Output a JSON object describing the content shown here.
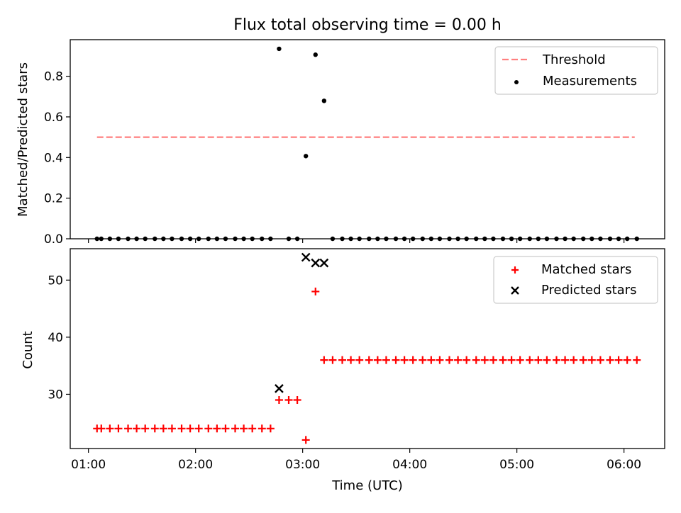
{
  "chart_data": [
    {
      "type": "scatter",
      "panel": "top",
      "title": "Flux total observing time = 0.00 h",
      "xlabel": "",
      "ylabel": "Matched/Predicted stars",
      "x_unit": "hours UTC",
      "xlim": [
        0.83,
        6.38
      ],
      "ylim": [
        0,
        0.98
      ],
      "yticks": [
        0.0,
        0.2,
        0.4,
        0.6,
        0.8
      ],
      "ytick_labels": [
        "0.0",
        "0.2",
        "0.4",
        "0.6",
        "0.8"
      ],
      "legend_position": "top-right",
      "threshold": {
        "name": "Threshold",
        "value": 0.5,
        "x_start": 1.08,
        "x_end": 6.1,
        "color": "#ff7f7f",
        "style": "dashed"
      },
      "measurements": {
        "name": "Measurements",
        "color": "#000000",
        "points": [
          {
            "x": 1.08,
            "y": 0.0
          },
          {
            "x": 1.12,
            "y": 0.0
          },
          {
            "x": 1.2,
            "y": 0.0
          },
          {
            "x": 1.28,
            "y": 0.0
          },
          {
            "x": 1.37,
            "y": 0.0
          },
          {
            "x": 1.45,
            "y": 0.0
          },
          {
            "x": 1.53,
            "y": 0.0
          },
          {
            "x": 1.62,
            "y": 0.0
          },
          {
            "x": 1.7,
            "y": 0.0
          },
          {
            "x": 1.78,
            "y": 0.0
          },
          {
            "x": 1.87,
            "y": 0.0
          },
          {
            "x": 1.95,
            "y": 0.0
          },
          {
            "x": 2.03,
            "y": 0.0
          },
          {
            "x": 2.12,
            "y": 0.0
          },
          {
            "x": 2.2,
            "y": 0.0
          },
          {
            "x": 2.28,
            "y": 0.0
          },
          {
            "x": 2.37,
            "y": 0.0
          },
          {
            "x": 2.45,
            "y": 0.0
          },
          {
            "x": 2.53,
            "y": 0.0
          },
          {
            "x": 2.62,
            "y": 0.0
          },
          {
            "x": 2.7,
            "y": 0.0
          },
          {
            "x": 2.78,
            "y": 0.935
          },
          {
            "x": 2.87,
            "y": 0.0
          },
          {
            "x": 2.95,
            "y": 0.0
          },
          {
            "x": 3.03,
            "y": 0.407
          },
          {
            "x": 3.12,
            "y": 0.906
          },
          {
            "x": 3.2,
            "y": 0.679
          },
          {
            "x": 3.28,
            "y": 0.0
          },
          {
            "x": 3.37,
            "y": 0.0
          },
          {
            "x": 3.45,
            "y": 0.0
          },
          {
            "x": 3.53,
            "y": 0.0
          },
          {
            "x": 3.62,
            "y": 0.0
          },
          {
            "x": 3.7,
            "y": 0.0
          },
          {
            "x": 3.78,
            "y": 0.0
          },
          {
            "x": 3.87,
            "y": 0.0
          },
          {
            "x": 3.95,
            "y": 0.0
          },
          {
            "x": 4.03,
            "y": 0.0
          },
          {
            "x": 4.12,
            "y": 0.0
          },
          {
            "x": 4.2,
            "y": 0.0
          },
          {
            "x": 4.28,
            "y": 0.0
          },
          {
            "x": 4.37,
            "y": 0.0
          },
          {
            "x": 4.45,
            "y": 0.0
          },
          {
            "x": 4.53,
            "y": 0.0
          },
          {
            "x": 4.62,
            "y": 0.0
          },
          {
            "x": 4.7,
            "y": 0.0
          },
          {
            "x": 4.78,
            "y": 0.0
          },
          {
            "x": 4.87,
            "y": 0.0
          },
          {
            "x": 4.95,
            "y": 0.0
          },
          {
            "x": 5.03,
            "y": 0.0
          },
          {
            "x": 5.12,
            "y": 0.0
          },
          {
            "x": 5.2,
            "y": 0.0
          },
          {
            "x": 5.28,
            "y": 0.0
          },
          {
            "x": 5.37,
            "y": 0.0
          },
          {
            "x": 5.45,
            "y": 0.0
          },
          {
            "x": 5.53,
            "y": 0.0
          },
          {
            "x": 5.62,
            "y": 0.0
          },
          {
            "x": 5.7,
            "y": 0.0
          },
          {
            "x": 5.78,
            "y": 0.0
          },
          {
            "x": 5.87,
            "y": 0.0
          },
          {
            "x": 5.95,
            "y": 0.0
          },
          {
            "x": 6.03,
            "y": 0.0
          },
          {
            "x": 6.12,
            "y": 0.0
          }
        ]
      },
      "legend": [
        "Threshold",
        "Measurements"
      ]
    },
    {
      "type": "scatter",
      "panel": "bottom",
      "xlabel": "Time (UTC)",
      "ylabel": "Count",
      "x_unit": "hours UTC",
      "xlim": [
        0.83,
        6.38
      ],
      "ylim": [
        20.5,
        55.5
      ],
      "xticks": [
        1,
        2,
        3,
        4,
        5,
        6
      ],
      "xtick_labels": [
        "01:00",
        "02:00",
        "03:00",
        "04:00",
        "05:00",
        "06:00"
      ],
      "yticks": [
        30,
        40,
        50
      ],
      "ytick_labels": [
        "30",
        "40",
        "50"
      ],
      "legend_position": "top-right",
      "matched": {
        "name": "Matched stars",
        "marker": "plus",
        "color": "#ff0000",
        "points": [
          {
            "x": 1.08,
            "y": 24
          },
          {
            "x": 1.12,
            "y": 24
          },
          {
            "x": 1.2,
            "y": 24
          },
          {
            "x": 1.28,
            "y": 24
          },
          {
            "x": 1.37,
            "y": 24
          },
          {
            "x": 1.45,
            "y": 24
          },
          {
            "x": 1.53,
            "y": 24
          },
          {
            "x": 1.62,
            "y": 24
          },
          {
            "x": 1.7,
            "y": 24
          },
          {
            "x": 1.78,
            "y": 24
          },
          {
            "x": 1.87,
            "y": 24
          },
          {
            "x": 1.95,
            "y": 24
          },
          {
            "x": 2.03,
            "y": 24
          },
          {
            "x": 2.12,
            "y": 24
          },
          {
            "x": 2.2,
            "y": 24
          },
          {
            "x": 2.28,
            "y": 24
          },
          {
            "x": 2.37,
            "y": 24
          },
          {
            "x": 2.45,
            "y": 24
          },
          {
            "x": 2.53,
            "y": 24
          },
          {
            "x": 2.62,
            "y": 24
          },
          {
            "x": 2.7,
            "y": 24
          },
          {
            "x": 2.78,
            "y": 29
          },
          {
            "x": 2.87,
            "y": 29
          },
          {
            "x": 2.95,
            "y": 29
          },
          {
            "x": 3.03,
            "y": 22
          },
          {
            "x": 3.12,
            "y": 48
          },
          {
            "x": 3.2,
            "y": 36
          },
          {
            "x": 3.28,
            "y": 36
          },
          {
            "x": 3.37,
            "y": 36
          },
          {
            "x": 3.45,
            "y": 36
          },
          {
            "x": 3.53,
            "y": 36
          },
          {
            "x": 3.62,
            "y": 36
          },
          {
            "x": 3.7,
            "y": 36
          },
          {
            "x": 3.78,
            "y": 36
          },
          {
            "x": 3.87,
            "y": 36
          },
          {
            "x": 3.95,
            "y": 36
          },
          {
            "x": 4.03,
            "y": 36
          },
          {
            "x": 4.12,
            "y": 36
          },
          {
            "x": 4.2,
            "y": 36
          },
          {
            "x": 4.28,
            "y": 36
          },
          {
            "x": 4.37,
            "y": 36
          },
          {
            "x": 4.45,
            "y": 36
          },
          {
            "x": 4.53,
            "y": 36
          },
          {
            "x": 4.62,
            "y": 36
          },
          {
            "x": 4.7,
            "y": 36
          },
          {
            "x": 4.78,
            "y": 36
          },
          {
            "x": 4.87,
            "y": 36
          },
          {
            "x": 4.95,
            "y": 36
          },
          {
            "x": 5.03,
            "y": 36
          },
          {
            "x": 5.12,
            "y": 36
          },
          {
            "x": 5.2,
            "y": 36
          },
          {
            "x": 5.28,
            "y": 36
          },
          {
            "x": 5.37,
            "y": 36
          },
          {
            "x": 5.45,
            "y": 36
          },
          {
            "x": 5.53,
            "y": 36
          },
          {
            "x": 5.62,
            "y": 36
          },
          {
            "x": 5.7,
            "y": 36
          },
          {
            "x": 5.78,
            "y": 36
          },
          {
            "x": 5.87,
            "y": 36
          },
          {
            "x": 5.95,
            "y": 36
          },
          {
            "x": 6.03,
            "y": 36
          },
          {
            "x": 6.12,
            "y": 36
          }
        ]
      },
      "predicted": {
        "name": "Predicted stars",
        "marker": "x",
        "color": "#000000",
        "points": [
          {
            "x": 2.78,
            "y": 31
          },
          {
            "x": 3.03,
            "y": 54
          },
          {
            "x": 3.12,
            "y": 53
          },
          {
            "x": 3.2,
            "y": 53
          }
        ]
      },
      "legend": [
        "Matched stars",
        "Predicted stars"
      ]
    }
  ]
}
